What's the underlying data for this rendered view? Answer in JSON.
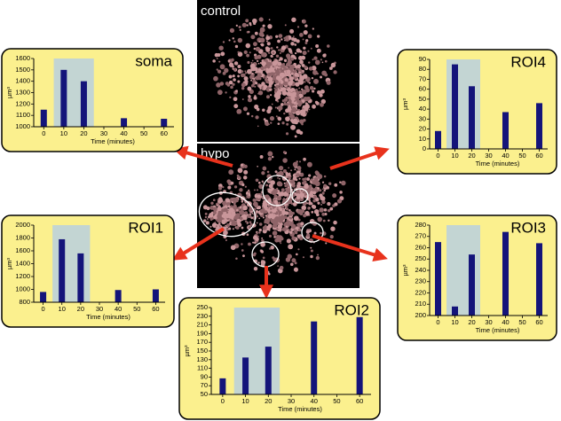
{
  "images": [
    {
      "label": "control"
    },
    {
      "label": "hypo"
    }
  ],
  "chart_data": [
    {
      "type": "bar",
      "title": "soma",
      "x": [
        0,
        10,
        20,
        40,
        60
      ],
      "values": [
        1150,
        1500,
        1400,
        1075,
        1070
      ],
      "color": "#14147a",
      "xlim": [
        -5,
        65
      ],
      "xticks": [
        0,
        10,
        20,
        30,
        40,
        50,
        60
      ],
      "ylim": [
        1000,
        1600
      ],
      "yticks": [
        1000,
        1100,
        1200,
        1300,
        1400,
        1500,
        1600
      ],
      "xlabel": "Time (minutes)",
      "ylabel": "µm³",
      "highlight_x": [
        5,
        25
      ]
    },
    {
      "type": "bar",
      "title": "ROI4",
      "x": [
        0,
        10,
        20,
        40,
        60
      ],
      "values": [
        18,
        85,
        63,
        37,
        46
      ],
      "color": "#14147a",
      "xlim": [
        -5,
        65
      ],
      "xticks": [
        0,
        10,
        20,
        30,
        40,
        50,
        60
      ],
      "ylim": [
        0,
        90
      ],
      "yticks": [
        0,
        10,
        20,
        30,
        40,
        50,
        60,
        70,
        80,
        90
      ],
      "xlabel": "Time (minutes)",
      "ylabel": "µm³",
      "highlight_x": [
        5,
        25
      ]
    },
    {
      "type": "bar",
      "title": "ROI1",
      "x": [
        0,
        10,
        20,
        40,
        60
      ],
      "values": [
        960,
        1780,
        1560,
        990,
        1000
      ],
      "color": "#14147a",
      "xlim": [
        -5,
        65
      ],
      "xticks": [
        0,
        10,
        20,
        30,
        40,
        50,
        60
      ],
      "ylim": [
        800,
        2000
      ],
      "yticks": [
        800,
        1000,
        1200,
        1400,
        1600,
        1800,
        2000
      ],
      "xlabel": "Time (minutes)",
      "ylabel": "µm³",
      "highlight_x": [
        5,
        25
      ]
    },
    {
      "type": "bar",
      "title": "ROI3",
      "x": [
        0,
        10,
        20,
        40,
        60
      ],
      "values": [
        265,
        208,
        254,
        274,
        264
      ],
      "color": "#14147a",
      "xlim": [
        -5,
        65
      ],
      "xticks": [
        0,
        10,
        20,
        30,
        40,
        50,
        60
      ],
      "ylim": [
        200,
        280
      ],
      "yticks": [
        200,
        210,
        220,
        230,
        240,
        250,
        260,
        270,
        280
      ],
      "xlabel": "Time (minutes)",
      "ylabel": "µm³",
      "highlight_x": [
        5,
        25
      ]
    },
    {
      "type": "bar",
      "title": "ROI2",
      "x": [
        0,
        10,
        20,
        40,
        60
      ],
      "values": [
        87,
        135,
        160,
        218,
        228
      ],
      "color": "#14147a",
      "xlim": [
        -5,
        65
      ],
      "xticks": [
        0,
        10,
        20,
        30,
        40,
        50,
        60
      ],
      "ylim": [
        50,
        250
      ],
      "yticks": [
        50,
        70,
        90,
        110,
        130,
        150,
        170,
        190,
        210,
        230,
        250
      ],
      "xlabel": "Time (minutes)",
      "ylabel": "µm³",
      "highlight_x": [
        5,
        25
      ]
    }
  ]
}
